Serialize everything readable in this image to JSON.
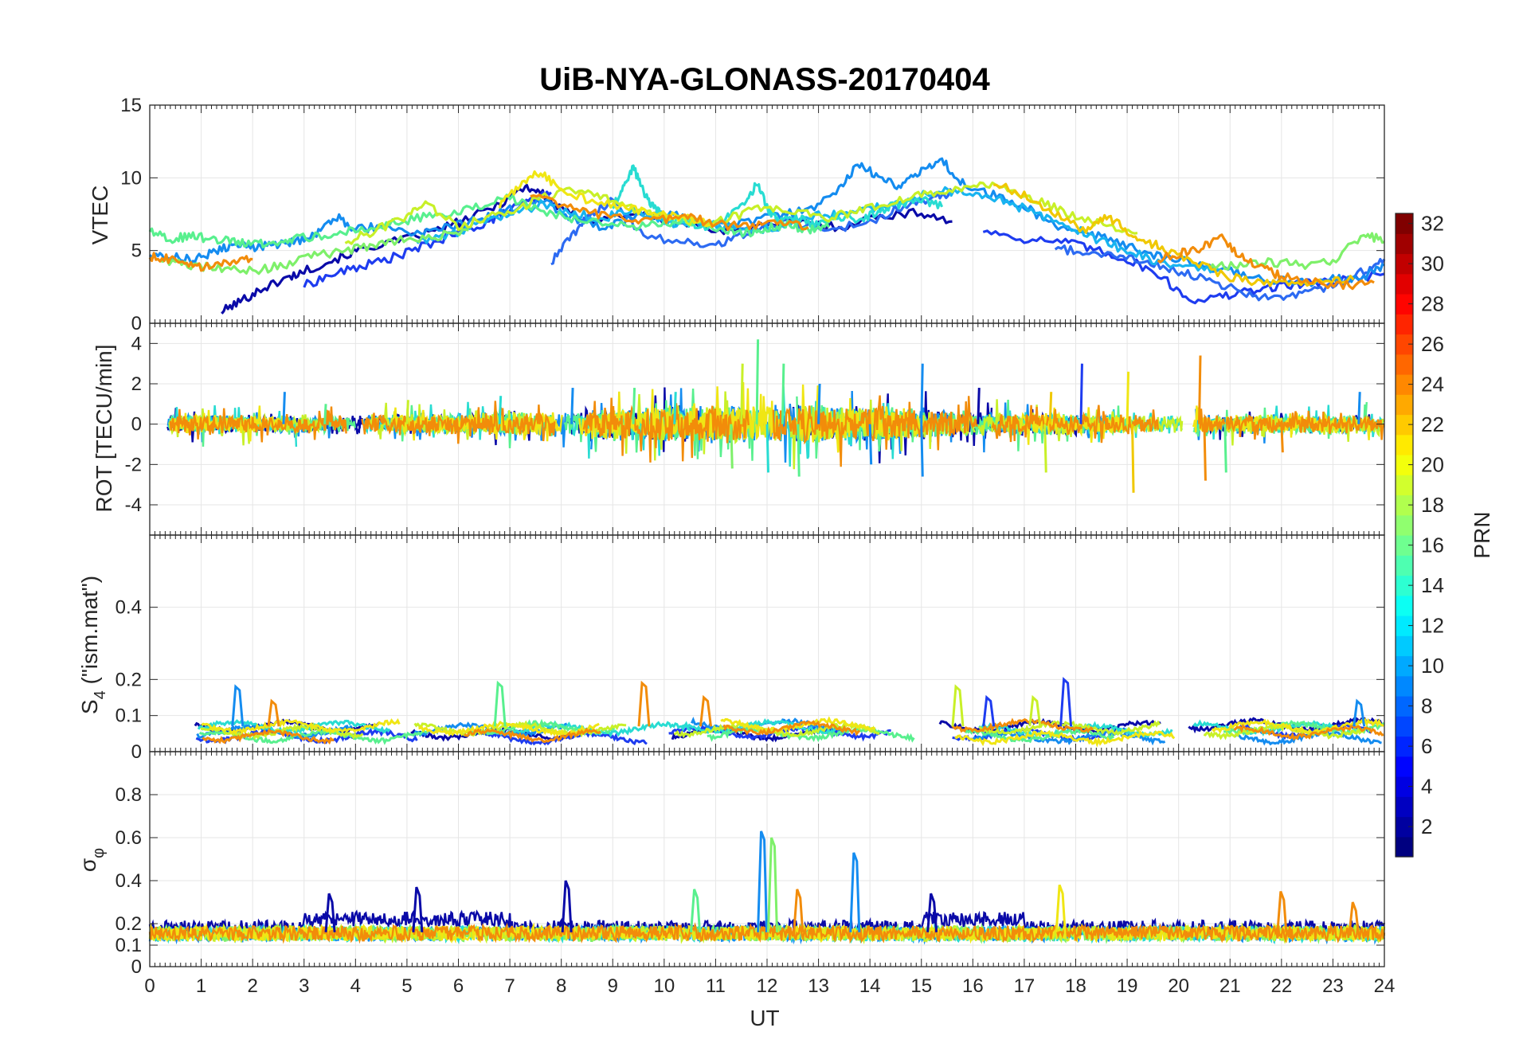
{
  "title": "UiB-NYA-GLONASS-20170404",
  "chart_data": [
    {
      "type": "line",
      "panel": "vtec",
      "ylabel": "VTEC",
      "xlim": [
        0,
        24
      ],
      "ylim": [
        0,
        15
      ],
      "yticks": [
        "0",
        "5",
        "10",
        "15"
      ],
      "series": [
        {
          "prn": 2,
          "color": "#0a0aa8",
          "x": [
            1.4,
            1.8,
            2.2,
            2.6,
            3.0,
            3.6,
            4.2,
            5.0,
            5.6,
            6.2,
            6.8,
            7.3,
            7.6,
            8.0,
            8.6,
            9.4,
            10.2,
            11.0,
            11.8,
            12.6,
            13.4,
            14.2,
            15.0,
            15.6
          ],
          "y": [
            0.8,
            1.6,
            2.4,
            3.0,
            3.6,
            4.4,
            5.2,
            5.8,
            6.4,
            7.2,
            8.2,
            9.4,
            9.0,
            7.8,
            7.0,
            7.6,
            7.0,
            6.4,
            6.6,
            7.0,
            6.6,
            7.4,
            7.6,
            7.0
          ]
        },
        {
          "prn": 4,
          "color": "#1e3cf0",
          "x": [
            3.0,
            3.6,
            4.2,
            4.8,
            5.4,
            6.0,
            6.6,
            7.0,
            7.4,
            7.8
          ],
          "y": [
            2.6,
            3.4,
            4.0,
            4.6,
            5.4,
            6.2,
            7.0,
            7.8,
            8.4,
            9.0
          ]
        },
        {
          "prn": 5,
          "color": "#1e3cf0",
          "x": [
            16.2,
            17.0,
            17.8,
            18.4,
            19.0,
            19.6,
            20.2,
            20.8,
            21.4,
            22.0,
            22.6,
            23.2,
            24.0
          ],
          "y": [
            6.4,
            5.8,
            5.6,
            5.0,
            4.4,
            3.4,
            1.6,
            1.8,
            2.2,
            2.6,
            2.8,
            3.0,
            3.4
          ]
        },
        {
          "prn": 7,
          "color": "#2c6af2",
          "x": [
            7.8,
            8.2,
            8.6,
            9.0,
            9.6,
            10.4,
            11.0,
            11.6,
            12.4,
            13.2,
            14.0,
            14.6,
            15.2,
            15.6
          ],
          "y": [
            4.2,
            6.0,
            7.6,
            8.4,
            6.0,
            5.6,
            5.4,
            6.2,
            7.0,
            6.4,
            7.0,
            8.0,
            8.6,
            9.0
          ]
        },
        {
          "prn": 8,
          "color": "#2c6af2",
          "x": [
            17.6,
            18.2,
            18.8,
            19.4,
            20.0,
            20.6,
            21.2,
            21.8,
            22.4,
            23.0,
            23.6,
            24.0
          ],
          "y": [
            5.2,
            4.8,
            4.6,
            4.2,
            3.6,
            3.0,
            2.2,
            1.6,
            2.0,
            2.6,
            3.6,
            4.4
          ]
        },
        {
          "prn": 9,
          "color": "#148cf0",
          "x": [
            0.0,
            0.4,
            0.8,
            1.2,
            1.6,
            2.0,
            2.4,
            2.8,
            3.2,
            3.6,
            4.0,
            4.6,
            5.2,
            5.8,
            6.4,
            7.0,
            7.6,
            8.2,
            8.8,
            9.4,
            10.0,
            10.6,
            11.4,
            12.2,
            12.8,
            13.4,
            13.8,
            14.2,
            14.6,
            15.0,
            15.4,
            15.8,
            16.4,
            17.0,
            17.6,
            18.2,
            18.8,
            19.4,
            20.0,
            20.6,
            21.2,
            21.8,
            22.4,
            23.0,
            23.6,
            24.0
          ],
          "y": [
            4.8,
            4.6,
            4.4,
            4.8,
            5.4,
            5.2,
            5.4,
            5.6,
            6.0,
            7.4,
            6.4,
            6.8,
            6.2,
            6.6,
            7.2,
            7.8,
            8.6,
            7.2,
            6.6,
            7.2,
            7.6,
            7.0,
            6.8,
            7.4,
            7.8,
            9.2,
            11.0,
            10.0,
            9.4,
            10.4,
            11.2,
            9.6,
            8.8,
            8.0,
            6.8,
            6.2,
            5.6,
            4.8,
            4.4,
            3.8,
            3.4,
            3.0,
            2.8,
            3.0,
            3.2,
            4.0
          ]
        },
        {
          "prn": 11,
          "color": "#18b4f0",
          "x": [
            5.2,
            5.8,
            6.4,
            7.0,
            7.6,
            8.2,
            8.8,
            9.4,
            10.0,
            10.6,
            11.2,
            11.8,
            12.4,
            13.0,
            13.6,
            14.2,
            14.8,
            15.4,
            16.0,
            16.6,
            17.2,
            17.8,
            18.4,
            19.0,
            19.6,
            20.2,
            20.8
          ],
          "y": [
            5.6,
            6.0,
            6.8,
            7.4,
            8.2,
            7.6,
            7.2,
            7.8,
            6.8,
            7.0,
            6.6,
            6.4,
            6.8,
            7.4,
            7.6,
            8.0,
            8.6,
            9.2,
            8.8,
            8.4,
            7.6,
            6.8,
            5.8,
            5.0,
            4.2,
            3.8,
            3.6
          ]
        },
        {
          "prn": 13,
          "color": "#28dcd2",
          "x": [
            9.0,
            9.2,
            9.4,
            9.6,
            9.8,
            10.0,
            10.4,
            10.8,
            11.2,
            11.6,
            11.8,
            12.0,
            12.2,
            12.6,
            13.0,
            13.4,
            13.8,
            14.2,
            14.6,
            15.0,
            15.4
          ],
          "y": [
            8.0,
            9.4,
            10.8,
            9.0,
            8.0,
            7.2,
            7.0,
            6.6,
            7.2,
            8.4,
            9.6,
            8.0,
            7.0,
            7.2,
            6.8,
            7.4,
            7.0,
            7.8,
            8.2,
            8.6,
            8.0
          ]
        },
        {
          "prn": 15,
          "color": "#58f08e",
          "x": [
            0.0,
            0.4,
            0.8,
            1.2,
            1.6,
            2.0,
            2.4,
            2.8,
            3.4,
            4.0,
            4.6,
            5.2,
            5.8,
            6.4,
            7.0,
            7.6,
            8.2,
            8.8,
            9.4,
            10.0,
            10.6,
            11.2,
            11.6,
            12.0,
            12.4,
            12.8,
            13.2
          ],
          "y": [
            6.4,
            5.8,
            6.0,
            5.8,
            5.6,
            5.4,
            5.6,
            5.8,
            6.0,
            6.4,
            6.8,
            7.2,
            7.6,
            8.0,
            8.6,
            7.8,
            7.2,
            6.8,
            6.6,
            6.8,
            7.0,
            6.4,
            6.2,
            6.6,
            6.8,
            6.4,
            6.6
          ]
        },
        {
          "prn": 16,
          "color": "#7ef06a",
          "x": [
            0.2,
            0.8,
            1.4,
            2.0,
            2.6,
            3.2,
            3.8,
            4.4,
            5.0,
            5.6,
            6.2
          ],
          "y": [
            4.4,
            4.0,
            3.8,
            3.6,
            4.0,
            4.6,
            5.0,
            5.4,
            5.8,
            6.0,
            6.4
          ]
        },
        {
          "prn": 16,
          "color": "#7ef06a",
          "x": [
            20.6,
            21.2,
            21.8,
            22.4,
            23.0,
            23.6,
            24.0
          ],
          "y": [
            3.8,
            4.0,
            4.2,
            4.0,
            4.2,
            6.2,
            5.6
          ]
        },
        {
          "prn": 18,
          "color": "#c8f028",
          "x": [
            3.8,
            4.4,
            5.0,
            5.4,
            6.0,
            6.6,
            7.2,
            7.8,
            8.4,
            9.0,
            9.6,
            10.2,
            10.8,
            11.4,
            12.0,
            12.6,
            13.2,
            13.8,
            14.4,
            15.0,
            15.6,
            16.2,
            16.8,
            17.4,
            18.0,
            18.6,
            19.2
          ],
          "y": [
            5.6,
            6.4,
            7.4,
            8.2,
            6.6,
            7.4,
            8.0,
            8.8,
            9.2,
            8.4,
            7.6,
            7.2,
            6.8,
            7.4,
            8.0,
            7.6,
            7.2,
            7.8,
            8.4,
            8.8,
            9.2,
            9.6,
            9.0,
            8.2,
            7.4,
            6.8,
            6.2
          ]
        },
        {
          "prn": 20,
          "color": "#f0e614",
          "x": [
            6.8,
            7.2,
            7.6,
            8.0,
            8.6,
            9.2,
            9.8,
            10.4,
            11.0
          ],
          "y": [
            8.0,
            9.6,
            10.4,
            9.2,
            8.4,
            8.0,
            7.6,
            7.2,
            6.8
          ]
        },
        {
          "prn": 21,
          "color": "#f0c800",
          "x": [
            16.4,
            17.0,
            17.6,
            18.2,
            18.6,
            19.0,
            19.4,
            19.8,
            20.4,
            21.0,
            21.6,
            22.2,
            22.8,
            23.4
          ],
          "y": [
            9.6,
            8.8,
            7.6,
            6.2,
            7.4,
            6.4,
            5.6,
            5.0,
            4.0,
            3.2,
            2.8,
            2.6,
            2.8,
            3.0
          ]
        },
        {
          "prn": 23,
          "color": "#f28c0a",
          "x": [
            0.0,
            0.4,
            0.8,
            1.2,
            1.6,
            2.0
          ],
          "y": [
            4.6,
            4.4,
            4.0,
            3.8,
            4.2,
            4.4
          ]
        },
        {
          "prn": 23,
          "color": "#f28c0a",
          "x": [
            7.4,
            8.0,
            8.6,
            9.2,
            9.8,
            10.4,
            11.0,
            11.6,
            12.2,
            12.8
          ],
          "y": [
            8.8,
            8.2,
            7.6,
            7.2,
            7.0,
            7.4,
            6.8,
            6.6,
            7.0,
            6.6
          ]
        },
        {
          "prn": 23,
          "color": "#f28c0a",
          "x": [
            19.6,
            20.0,
            20.4,
            20.8,
            21.2,
            21.6,
            22.0,
            22.6,
            23.2,
            23.8
          ],
          "y": [
            4.4,
            4.8,
            5.0,
            6.0,
            4.6,
            3.8,
            3.2,
            2.8,
            2.6,
            2.8
          ]
        }
      ]
    },
    {
      "type": "line",
      "panel": "rot",
      "ylabel": "ROT [TECU/min]",
      "xlim": [
        0,
        24
      ],
      "ylim": [
        -5.5,
        5
      ],
      "yticks": [
        "-4",
        "-2",
        "0",
        "2",
        "4"
      ],
      "spikes": [
        {
          "x": 2.6,
          "v": 1.6,
          "color": "#148cf0"
        },
        {
          "x": 3.4,
          "v": 1.0,
          "color": "#58f08e"
        },
        {
          "x": 5.0,
          "v": 1.2,
          "color": "#c8f028"
        },
        {
          "x": 6.8,
          "v": 1.4,
          "color": "#28dcd2"
        },
        {
          "x": 8.2,
          "v": 1.8,
          "color": "#148cf0"
        },
        {
          "x": 9.4,
          "v": 1.8,
          "color": "#58f08e"
        },
        {
          "x": 10.2,
          "v": 1.6,
          "color": "#28dcd2"
        },
        {
          "x": 11.3,
          "v": -2.2,
          "color": "#7ef06a"
        },
        {
          "x": 11.5,
          "v": 3.0,
          "color": "#c8f028"
        },
        {
          "x": 11.8,
          "v": 4.2,
          "color": "#58f08e"
        },
        {
          "x": 12.0,
          "v": -2.4,
          "color": "#28dcd2"
        },
        {
          "x": 12.3,
          "v": 3.0,
          "color": "#58f08e"
        },
        {
          "x": 12.6,
          "v": -2.6,
          "color": "#58f08e"
        },
        {
          "x": 13.0,
          "v": 2.0,
          "color": "#148cf0"
        },
        {
          "x": 14.0,
          "v": -2.0,
          "color": "#148cf0"
        },
        {
          "x": 15.0,
          "v": -2.6,
          "color": "#148cf0"
        },
        {
          "x": 15.0,
          "v": 3.0,
          "color": "#148cf0"
        },
        {
          "x": 16.1,
          "v": 1.8,
          "color": "#0a0aa8"
        },
        {
          "x": 17.4,
          "v": -2.4,
          "color": "#c8f028"
        },
        {
          "x": 17.5,
          "v": 1.6,
          "color": "#f0c800"
        },
        {
          "x": 18.1,
          "v": 3.0,
          "color": "#1e3cf0"
        },
        {
          "x": 19.0,
          "v": 2.6,
          "color": "#f0e614"
        },
        {
          "x": 19.1,
          "v": -3.4,
          "color": "#f0c800"
        },
        {
          "x": 20.4,
          "v": 3.4,
          "color": "#f28c0a"
        },
        {
          "x": 20.5,
          "v": -2.8,
          "color": "#f28c0a"
        },
        {
          "x": 20.9,
          "v": -2.4,
          "color": "#58f08e"
        },
        {
          "x": 22.0,
          "v": -1.4,
          "color": "#f28c0a"
        },
        {
          "x": 23.5,
          "v": 1.6,
          "color": "#148cf0"
        }
      ]
    },
    {
      "type": "line",
      "panel": "s4",
      "ylabel": "S4 (\"ism.mat\")",
      "xlim": [
        0,
        24
      ],
      "ylim": [
        0,
        0.6
      ],
      "yticks": [
        "0",
        "0.1",
        "0.2",
        "0.4"
      ],
      "peaks": [
        {
          "x": 1.7,
          "v": 0.18,
          "color": "#148cf0"
        },
        {
          "x": 2.4,
          "v": 0.14,
          "color": "#f28c0a"
        },
        {
          "x": 6.8,
          "v": 0.19,
          "color": "#58f08e"
        },
        {
          "x": 9.6,
          "v": 0.19,
          "color": "#f28c0a"
        },
        {
          "x": 10.8,
          "v": 0.15,
          "color": "#f28c0a"
        },
        {
          "x": 15.7,
          "v": 0.18,
          "color": "#c8f028"
        },
        {
          "x": 16.3,
          "v": 0.15,
          "color": "#1e3cf0"
        },
        {
          "x": 17.2,
          "v": 0.15,
          "color": "#c8f028"
        },
        {
          "x": 17.8,
          "v": 0.2,
          "color": "#1e3cf0"
        },
        {
          "x": 23.5,
          "v": 0.14,
          "color": "#148cf0"
        }
      ]
    },
    {
      "type": "line",
      "panel": "sigma_phi",
      "ylabel": "σφ",
      "xlabel": "UT",
      "xlim": [
        0,
        24
      ],
      "ylim": [
        0,
        1
      ],
      "yticks": [
        "0",
        "0.1",
        "0.2",
        "0.4",
        "0.6",
        "0.8"
      ],
      "xticks": [
        "0",
        "1",
        "2",
        "3",
        "4",
        "5",
        "6",
        "7",
        "8",
        "9",
        "10",
        "11",
        "12",
        "13",
        "14",
        "15",
        "16",
        "17",
        "18",
        "19",
        "20",
        "21",
        "22",
        "23",
        "24"
      ],
      "peaks": [
        {
          "x": 3.5,
          "v": 0.34,
          "color": "#0a0aa8"
        },
        {
          "x": 5.2,
          "v": 0.37,
          "color": "#0a0aa8"
        },
        {
          "x": 8.1,
          "v": 0.4,
          "color": "#0a0aa8"
        },
        {
          "x": 10.6,
          "v": 0.36,
          "color": "#58f08e"
        },
        {
          "x": 11.9,
          "v": 0.63,
          "color": "#148cf0"
        },
        {
          "x": 12.1,
          "v": 0.6,
          "color": "#7ef06a"
        },
        {
          "x": 12.6,
          "v": 0.36,
          "color": "#f28c0a"
        },
        {
          "x": 13.7,
          "v": 0.53,
          "color": "#148cf0"
        },
        {
          "x": 15.2,
          "v": 0.34,
          "color": "#0a0aa8"
        },
        {
          "x": 17.7,
          "v": 0.38,
          "color": "#f0e614"
        },
        {
          "x": 22.0,
          "v": 0.35,
          "color": "#f28c0a"
        },
        {
          "x": 23.4,
          "v": 0.3,
          "color": "#f28c0a"
        }
      ]
    }
  ],
  "colorbar": {
    "label": "PRN",
    "min": 1,
    "max": 32,
    "ticks": [
      "2",
      "4",
      "6",
      "8",
      "10",
      "12",
      "14",
      "16",
      "18",
      "20",
      "22",
      "24",
      "26",
      "28",
      "30",
      "32"
    ],
    "colormap": "jet"
  }
}
